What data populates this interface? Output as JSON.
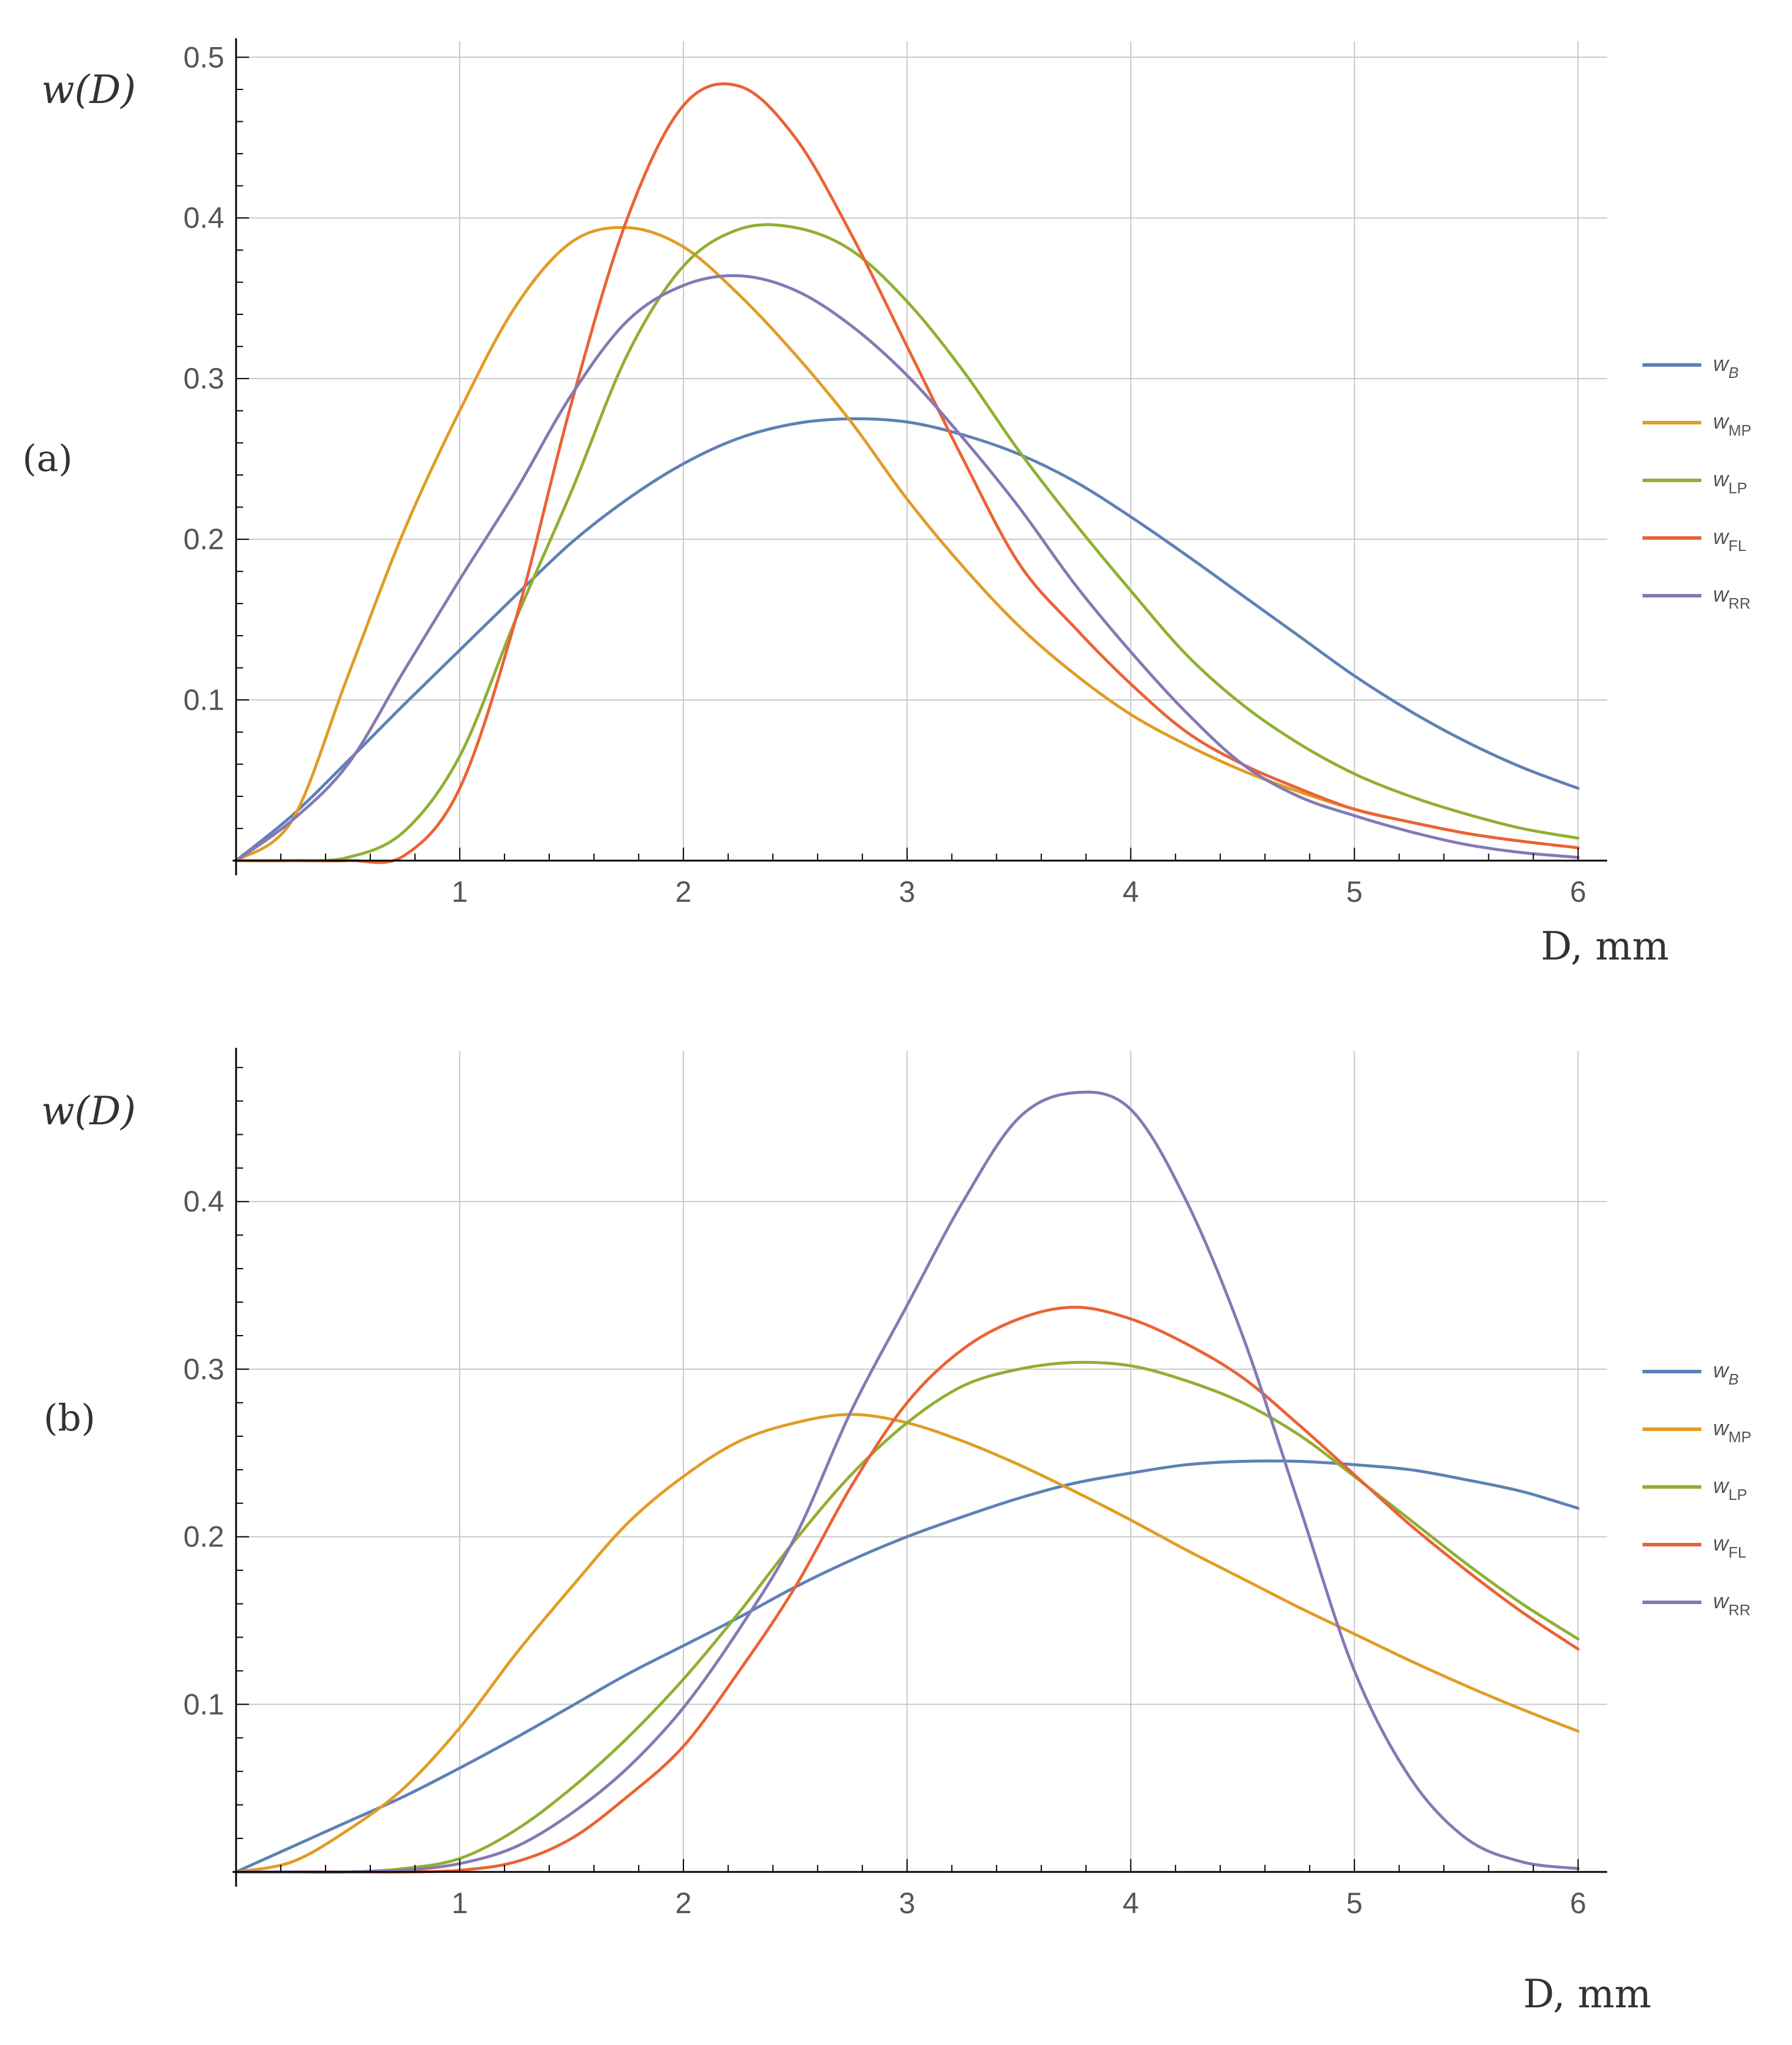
{
  "colors": {
    "wB": "#5E81B5",
    "wMP": "#E19C24",
    "wLP": "#8FB032",
    "wFL": "#EB6235",
    "wRR": "#8778B3",
    "grid": "#c8c8c8",
    "axis": "#000000"
  },
  "chart_data": [
    {
      "panel": "(a)",
      "type": "line",
      "title": "",
      "xlabel": "D, mm",
      "ylabel": "w(D)",
      "xlim": [
        0,
        6.13
      ],
      "ylim": [
        0,
        0.51
      ],
      "xticks": [
        1,
        2,
        3,
        4,
        5,
        6
      ],
      "yticks": [
        0.1,
        0.2,
        0.3,
        0.4,
        0.5
      ],
      "ytick_labels": [
        "0.1",
        "0.2",
        "0.3",
        "0.4",
        "0.5"
      ],
      "grid": true,
      "legend_position": "right",
      "x": [
        0,
        0.25,
        0.5,
        0.75,
        1,
        1.25,
        1.5,
        1.75,
        2,
        2.25,
        2.5,
        2.75,
        3,
        3.25,
        3.5,
        3.75,
        4,
        4.25,
        4.5,
        4.75,
        5,
        5.25,
        5.5,
        5.75,
        6
      ],
      "series": [
        {
          "name": "w",
          "sub": "B",
          "sub_italic": true,
          "color_key": "wB",
          "values": [
            0,
            0.028,
            0.062,
            0.097,
            0.131,
            0.165,
            0.198,
            0.225,
            0.247,
            0.263,
            0.272,
            0.275,
            0.273,
            0.265,
            0.253,
            0.236,
            0.214,
            0.19,
            0.165,
            0.14,
            0.115,
            0.093,
            0.074,
            0.058,
            0.045
          ]
        },
        {
          "name": "w",
          "sub": "MP",
          "sub_italic": false,
          "color_key": "wMP",
          "values": [
            0,
            0.025,
            0.115,
            0.205,
            0.28,
            0.345,
            0.385,
            0.394,
            0.382,
            0.352,
            0.315,
            0.273,
            0.225,
            0.183,
            0.146,
            0.116,
            0.091,
            0.072,
            0.056,
            0.043,
            0.032,
            0.024,
            0.017,
            0.012,
            0.008
          ]
        },
        {
          "name": "w",
          "sub": "LP",
          "sub_italic": false,
          "color_key": "wLP",
          "values": [
            0,
            0.0,
            0.002,
            0.018,
            0.065,
            0.15,
            0.23,
            0.315,
            0.37,
            0.393,
            0.394,
            0.38,
            0.348,
            0.305,
            0.255,
            0.21,
            0.168,
            0.128,
            0.097,
            0.073,
            0.054,
            0.04,
            0.029,
            0.02,
            0.014
          ]
        },
        {
          "name": "w",
          "sub": "FL",
          "sub_italic": false,
          "color_key": "wFL",
          "values": [
            0,
            0.0,
            0.0,
            0.003,
            0.045,
            0.15,
            0.285,
            0.4,
            0.47,
            0.482,
            0.45,
            0.39,
            0.32,
            0.25,
            0.185,
            0.145,
            0.11,
            0.08,
            0.06,
            0.045,
            0.032,
            0.024,
            0.017,
            0.012,
            0.008
          ]
        },
        {
          "name": "w",
          "sub": "RR",
          "sub_italic": false,
          "color_key": "wRR",
          "values": [
            0,
            0.025,
            0.06,
            0.118,
            0.175,
            0.23,
            0.29,
            0.336,
            0.358,
            0.364,
            0.355,
            0.333,
            0.302,
            0.263,
            0.22,
            0.172,
            0.13,
            0.092,
            0.06,
            0.04,
            0.028,
            0.018,
            0.01,
            0.005,
            0.002
          ]
        }
      ]
    },
    {
      "panel": "(b)",
      "type": "line",
      "title": "",
      "xlabel": "D, mm",
      "ylabel": "w(D)",
      "xlim": [
        0,
        6.13
      ],
      "ylim": [
        0,
        0.49
      ],
      "xticks": [
        1,
        2,
        3,
        4,
        5,
        6
      ],
      "yticks": [
        0.1,
        0.2,
        0.3,
        0.4
      ],
      "ytick_labels": [
        "0.1",
        "0.2",
        "0.3",
        "0.4"
      ],
      "grid": true,
      "legend_position": "right",
      "x": [
        0,
        0.25,
        0.5,
        0.75,
        1,
        1.25,
        1.5,
        1.75,
        2,
        2.25,
        2.5,
        2.75,
        3,
        3.25,
        3.5,
        3.75,
        4,
        4.25,
        4.5,
        4.75,
        5,
        5.25,
        5.5,
        5.75,
        6
      ],
      "series": [
        {
          "name": "w",
          "sub": "B",
          "sub_italic": true,
          "color_key": "wB",
          "values": [
            0,
            0.015,
            0.03,
            0.045,
            0.062,
            0.08,
            0.099,
            0.118,
            0.135,
            0.152,
            0.17,
            0.186,
            0.2,
            0.212,
            0.223,
            0.232,
            0.238,
            0.243,
            0.245,
            0.245,
            0.243,
            0.24,
            0.234,
            0.227,
            0.217
          ]
        },
        {
          "name": "w",
          "sub": "MP",
          "sub_italic": false,
          "color_key": "wMP",
          "values": [
            0,
            0.006,
            0.025,
            0.05,
            0.086,
            0.13,
            0.17,
            0.208,
            0.236,
            0.257,
            0.268,
            0.273,
            0.268,
            0.257,
            0.243,
            0.227,
            0.21,
            0.192,
            0.175,
            0.158,
            0.142,
            0.126,
            0.111,
            0.097,
            0.084
          ]
        },
        {
          "name": "w",
          "sub": "LP",
          "sub_italic": false,
          "color_key": "wLP",
          "values": [
            0,
            0.0,
            0.0,
            0.002,
            0.008,
            0.025,
            0.05,
            0.08,
            0.115,
            0.155,
            0.198,
            0.237,
            0.268,
            0.29,
            0.3,
            0.304,
            0.302,
            0.293,
            0.28,
            0.261,
            0.236,
            0.21,
            0.184,
            0.16,
            0.139
          ]
        },
        {
          "name": "w",
          "sub": "FL",
          "sub_italic": false,
          "color_key": "wFL",
          "values": [
            0,
            0.0,
            0.0,
            0.0,
            0.001,
            0.006,
            0.02,
            0.045,
            0.075,
            0.12,
            0.17,
            0.23,
            0.28,
            0.312,
            0.33,
            0.337,
            0.33,
            0.315,
            0.295,
            0.267,
            0.237,
            0.207,
            0.18,
            0.155,
            0.133
          ]
        },
        {
          "name": "w",
          "sub": "RR",
          "sub_italic": false,
          "color_key": "wRR",
          "values": [
            0,
            0.0,
            0.0,
            0.001,
            0.005,
            0.015,
            0.035,
            0.062,
            0.098,
            0.145,
            0.2,
            0.275,
            0.338,
            0.4,
            0.45,
            0.465,
            0.455,
            0.4,
            0.32,
            0.22,
            0.12,
            0.056,
            0.02,
            0.006,
            0.002
          ]
        }
      ]
    }
  ]
}
